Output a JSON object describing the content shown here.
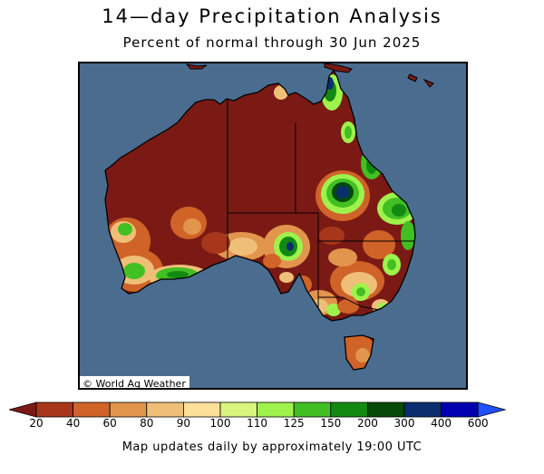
{
  "title": "14—day Precipitation Analysis",
  "subtitle": "Percent of normal through 30 Jun 2025",
  "credit": "© World Ag Weather",
  "footer": "Map updates daily by approximately 19:00 UTC",
  "legend": {
    "ticks": [
      "20",
      "40",
      "60",
      "80",
      "90",
      "100",
      "110",
      "125",
      "150",
      "200",
      "300",
      "400",
      "600"
    ],
    "colors": [
      "#7b1a14",
      "#a8361a",
      "#cf6328",
      "#e2954c",
      "#efbf78",
      "#fde09a",
      "#d9f57e",
      "#9ef24c",
      "#42bf22",
      "#128a12",
      "#054a08",
      "#0b2f6e",
      "#0000b0",
      "#2050ff"
    ]
  },
  "colors": {
    "ocean": "#4a6c8f",
    "land_base": "#7b1a14"
  }
}
